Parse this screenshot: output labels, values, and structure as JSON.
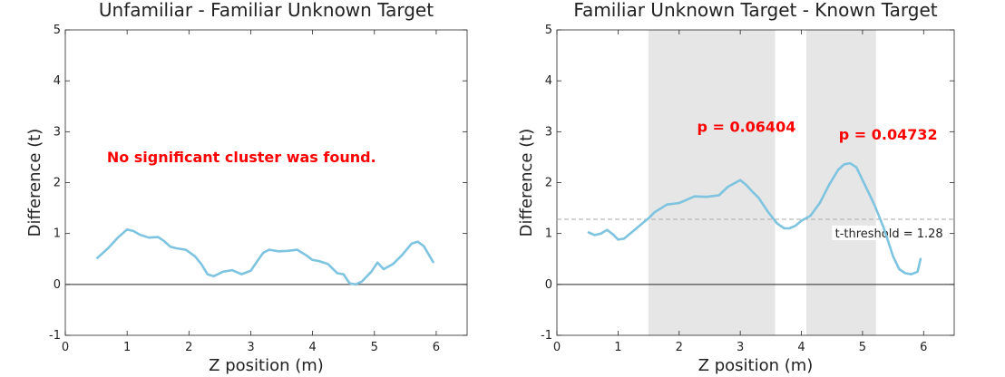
{
  "chart_data": [
    {
      "type": "line",
      "title": "Unfamiliar - Familiar Unknown Target",
      "xlabel": "Z position (m)",
      "ylabel": "Difference (t)",
      "xlim": [
        0,
        6.5
      ],
      "ylim": [
        -1,
        5
      ],
      "xticks": [
        0,
        1,
        2,
        3,
        4,
        5,
        6
      ],
      "yticks": [
        -1,
        0,
        1,
        2,
        3,
        4,
        5
      ],
      "series": [
        {
          "color": "#7ec4e0",
          "x": [
            0.52,
            0.7,
            0.85,
            1.0,
            1.1,
            1.2,
            1.35,
            1.5,
            1.6,
            1.7,
            1.8,
            1.95,
            2.1,
            2.2,
            2.3,
            2.4,
            2.55,
            2.7,
            2.85,
            3.0,
            3.1,
            3.2,
            3.3,
            3.45,
            3.6,
            3.75,
            3.9,
            4.0,
            4.1,
            4.25,
            4.4,
            4.5,
            4.6,
            4.7,
            4.8,
            4.95,
            5.05,
            5.15,
            5.3,
            5.45,
            5.6,
            5.7,
            5.8,
            5.95
          ],
          "y": [
            0.52,
            0.72,
            0.92,
            1.08,
            1.05,
            0.98,
            0.92,
            0.93,
            0.85,
            0.74,
            0.71,
            0.68,
            0.55,
            0.4,
            0.2,
            0.16,
            0.25,
            0.28,
            0.2,
            0.27,
            0.45,
            0.62,
            0.68,
            0.65,
            0.66,
            0.68,
            0.57,
            0.48,
            0.46,
            0.4,
            0.22,
            0.2,
            0.02,
            0.0,
            0.06,
            0.25,
            0.43,
            0.3,
            0.4,
            0.58,
            0.8,
            0.84,
            0.75,
            0.44
          ]
        }
      ],
      "annotations": [
        {
          "text": "No significant cluster was found.",
          "x": 2.85,
          "y": 2.4,
          "color": "#ff0000"
        }
      ]
    },
    {
      "type": "line",
      "title": "Familiar Unknown Target - Known Target",
      "xlabel": "Z position (m)",
      "ylabel": "Difference (t)",
      "xlim": [
        0,
        6.5
      ],
      "ylim": [
        -1,
        5
      ],
      "xticks": [
        0,
        1,
        2,
        3,
        4,
        5,
        6
      ],
      "yticks": [
        -1,
        0,
        1,
        2,
        3,
        4,
        5
      ],
      "shaded_regions": [
        {
          "x0": 1.5,
          "x1": 3.57,
          "color": "#e6e6e6"
        },
        {
          "x0": 4.08,
          "x1": 5.22,
          "color": "#e6e6e6"
        }
      ],
      "threshold": {
        "value": 1.28,
        "label": "t-threshold = 1.28",
        "color": "#aaaaaa"
      },
      "series": [
        {
          "color": "#7ec4e0",
          "x": [
            0.52,
            0.62,
            0.72,
            0.82,
            0.92,
            1.0,
            1.1,
            1.25,
            1.4,
            1.5,
            1.6,
            1.8,
            2.0,
            2.1,
            2.25,
            2.45,
            2.65,
            2.8,
            3.0,
            3.1,
            3.2,
            3.3,
            3.45,
            3.6,
            3.72,
            3.8,
            3.9,
            4.0,
            4.15,
            4.3,
            4.45,
            4.6,
            4.7,
            4.8,
            4.9,
            5.0,
            5.1,
            5.2,
            5.35,
            5.5,
            5.6,
            5.7,
            5.8,
            5.9,
            5.95
          ],
          "y": [
            1.02,
            0.97,
            1.0,
            1.07,
            0.98,
            0.88,
            0.9,
            1.05,
            1.2,
            1.3,
            1.42,
            1.57,
            1.6,
            1.65,
            1.73,
            1.72,
            1.75,
            1.92,
            2.05,
            1.95,
            1.82,
            1.7,
            1.43,
            1.2,
            1.1,
            1.1,
            1.15,
            1.25,
            1.35,
            1.6,
            1.95,
            2.25,
            2.36,
            2.38,
            2.3,
            2.05,
            1.8,
            1.55,
            1.1,
            0.55,
            0.3,
            0.22,
            0.2,
            0.25,
            0.5
          ]
        }
      ],
      "annotations": [
        {
          "text": "p = 0.06404",
          "x": 3.1,
          "y": 3.0,
          "color": "#ff0000"
        },
        {
          "text": "p = 0.04732",
          "x": 5.42,
          "y": 2.85,
          "color": "#ff0000"
        }
      ]
    }
  ]
}
